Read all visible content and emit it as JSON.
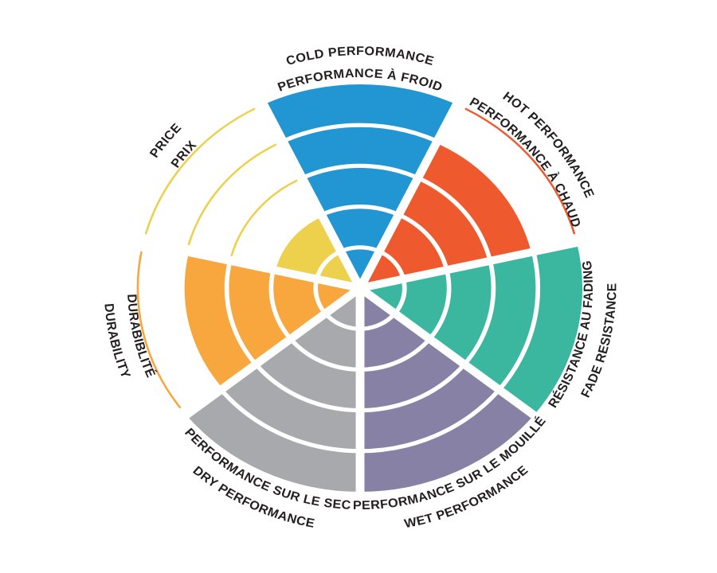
{
  "page": {
    "background": "#ffffff"
  },
  "chart_data": {
    "type": "pie",
    "subtype": "segmented-radial-rating-wheel",
    "rings": 5,
    "max_rating": 5,
    "ring_separator_color": "#ffffff",
    "label_color": "#231f20",
    "segments": [
      {
        "id": "cold-performance",
        "label_en": "COLD PERFORMANCE",
        "label_fr": "PERFORMANCE À FROID",
        "rating": 5,
        "color": "#2196d3"
      },
      {
        "id": "hot-performance",
        "label_en": "HOT PERFORMANCE",
        "label_fr": "PERFORMANCE À CHAUD",
        "rating": 4,
        "color": "#ee5a2e"
      },
      {
        "id": "fade-resistance",
        "label_en": "FADE RESISTANCE",
        "label_fr": "RÉSISTANCE AU FADING",
        "rating": 5,
        "color": "#3cb79f"
      },
      {
        "id": "wet-performance",
        "label_en": "WET PERFORMANCE",
        "label_fr": "PERFORMANCE SUR LE MOUILLÉ",
        "rating": 5,
        "color": "#8781a5"
      },
      {
        "id": "dry-performance",
        "label_en": "DRY PERFORMANCE",
        "label_fr": "PERFORMANCE SUR LE SEC",
        "rating": 5,
        "color": "#a8a9ac"
      },
      {
        "id": "durability",
        "label_en": "DURABILITY",
        "label_fr": "DURABIBLITÉ",
        "rating": 4,
        "color": "#f7a73d"
      },
      {
        "id": "price",
        "label_en": "PRICE",
        "label_fr": "PRIX",
        "rating": 2,
        "color": "#edd04b"
      }
    ],
    "notes": "Segments ordered clockwise from top. Filled rings = rating out of 5; unfilled rings shown as thin colored arcs."
  }
}
